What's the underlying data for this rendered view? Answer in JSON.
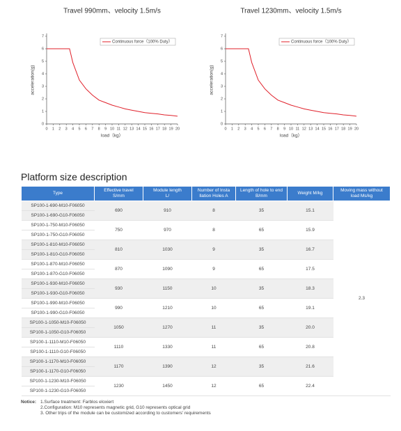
{
  "chart_data": [
    {
      "type": "line",
      "title": "Travel 990mm、velocity 1.5m/s",
      "x_label": "load（kg）",
      "y_label": "acceleration(g)",
      "x": [
        0,
        1,
        2,
        3,
        3.5,
        4,
        5,
        6,
        7,
        8,
        9,
        10,
        11,
        12,
        13,
        14,
        15,
        16,
        17,
        18,
        19,
        20
      ],
      "series": [
        {
          "name": "Continuous force（100% Duty）",
          "color": "#e0202a",
          "values": [
            6,
            6,
            6,
            6,
            6,
            4.9,
            3.5,
            2.8,
            2.3,
            1.9,
            1.7,
            1.5,
            1.35,
            1.2,
            1.1,
            1.0,
            0.9,
            0.85,
            0.8,
            0.72,
            0.68,
            0.62
          ]
        }
      ],
      "xlim": [
        0,
        20
      ],
      "xticks": [
        0,
        1,
        2,
        3,
        4,
        5,
        6,
        7,
        8,
        9,
        10,
        11,
        12,
        13,
        14,
        15,
        16,
        17,
        18,
        19,
        20
      ],
      "ylim": [
        0,
        7
      ],
      "yticks": [
        0,
        1,
        2,
        3,
        4,
        5,
        6,
        7
      ],
      "legend": "upper right"
    },
    {
      "type": "line",
      "title": "Travel 1230mm、velocity 1.5m/s",
      "x_label": "load（kg）",
      "y_label": "acceleration(g)",
      "x": [
        0,
        1,
        2,
        3,
        3.5,
        4,
        5,
        6,
        7,
        8,
        9,
        10,
        11,
        12,
        13,
        14,
        15,
        16,
        17,
        18,
        19,
        20
      ],
      "series": [
        {
          "name": "Continuous force（100% Duty）",
          "color": "#e0202a",
          "values": [
            6,
            6,
            6,
            6,
            6,
            4.9,
            3.5,
            2.8,
            2.3,
            1.9,
            1.7,
            1.5,
            1.35,
            1.2,
            1.1,
            1.0,
            0.9,
            0.85,
            0.8,
            0.72,
            0.68,
            0.62
          ]
        }
      ],
      "xlim": [
        0,
        20
      ],
      "xticks": [
        0,
        1,
        2,
        3,
        4,
        5,
        6,
        7,
        8,
        9,
        10,
        11,
        12,
        13,
        14,
        15,
        16,
        17,
        18,
        19,
        20
      ],
      "ylim": [
        0,
        7
      ],
      "yticks": [
        0,
        1,
        2,
        3,
        4,
        5,
        6,
        7
      ],
      "legend": "upper right"
    }
  ],
  "section_title": "Platform size description",
  "table": {
    "header": [
      "Type",
      "Effective travel\nS/mm",
      "Module length\nL/",
      "Number of Insta\nllation Holes A",
      "Length of hole to end\nB/mm",
      "Weight M/kg",
      "Moving mass without\nload Ms/kg"
    ],
    "moving_mass": "2.3",
    "groups": [
      {
        "types": [
          "SP100-1-690-M10-F06050",
          "SP100-1-690-G10-F06050"
        ],
        "travel": "690",
        "length": "910",
        "holes": "8",
        "b": "35",
        "weight": "15.1"
      },
      {
        "types": [
          "SP100-1-750-M10-F06050",
          "SP100-1-750-G10-F06050"
        ],
        "travel": "750",
        "length": "970",
        "holes": "8",
        "b": "65",
        "weight": "15.9"
      },
      {
        "types": [
          "SP100-1-810-M10-F06050",
          "SP100-1-810-G10-F06050"
        ],
        "travel": "810",
        "length": "1030",
        "holes": "9",
        "b": "35",
        "weight": "16.7"
      },
      {
        "types": [
          "SP100-1-870-M10-F06050",
          "SP100-1-870-G10-F06050"
        ],
        "travel": "870",
        "length": "1090",
        "holes": "9",
        "b": "65",
        "weight": "17.5"
      },
      {
        "types": [
          "SP100-1-930-M10-F06050",
          "SP100-1-930-G10-F06050"
        ],
        "travel": "930",
        "length": "1150",
        "holes": "10",
        "b": "35",
        "weight": "18.3"
      },
      {
        "types": [
          "SP100-1-990-M10-F06050",
          "SP100-1-990-G10-F06050"
        ],
        "travel": "990",
        "length": "1210",
        "holes": "10",
        "b": "65",
        "weight": "19.1"
      },
      {
        "types": [
          "SP100-1-1050-M10-F06050",
          "SP100-1-1050-G10-F06050"
        ],
        "travel": "1050",
        "length": "1270",
        "holes": "11",
        "b": "35",
        "weight": "20.0"
      },
      {
        "types": [
          "SP100-1-1110-M10-F06050",
          "SP100-1-1110-G10-F06050"
        ],
        "travel": "1110",
        "length": "1330",
        "holes": "11",
        "b": "65",
        "weight": "20.8"
      },
      {
        "types": [
          "SP100-1-1170-M10-F06050",
          "SP100-1-1170-G10-F06050"
        ],
        "travel": "1170",
        "length": "1390",
        "holes": "12",
        "b": "35",
        "weight": "21.6"
      },
      {
        "types": [
          "SP100-1-1230-M10-F06050",
          "SP100-1-1230-G10-F06050"
        ],
        "travel": "1230",
        "length": "1450",
        "holes": "12",
        "b": "65",
        "weight": "22.4"
      }
    ]
  },
  "notice": {
    "label": "Notice:",
    "items": [
      "1.Surface treatment: Farblos eloxiert",
      "2.Configuration: M10 represents magnetic grid, G10 represents optical grid",
      "3. Other trips of the module can be customized according to customers' requirements"
    ]
  }
}
